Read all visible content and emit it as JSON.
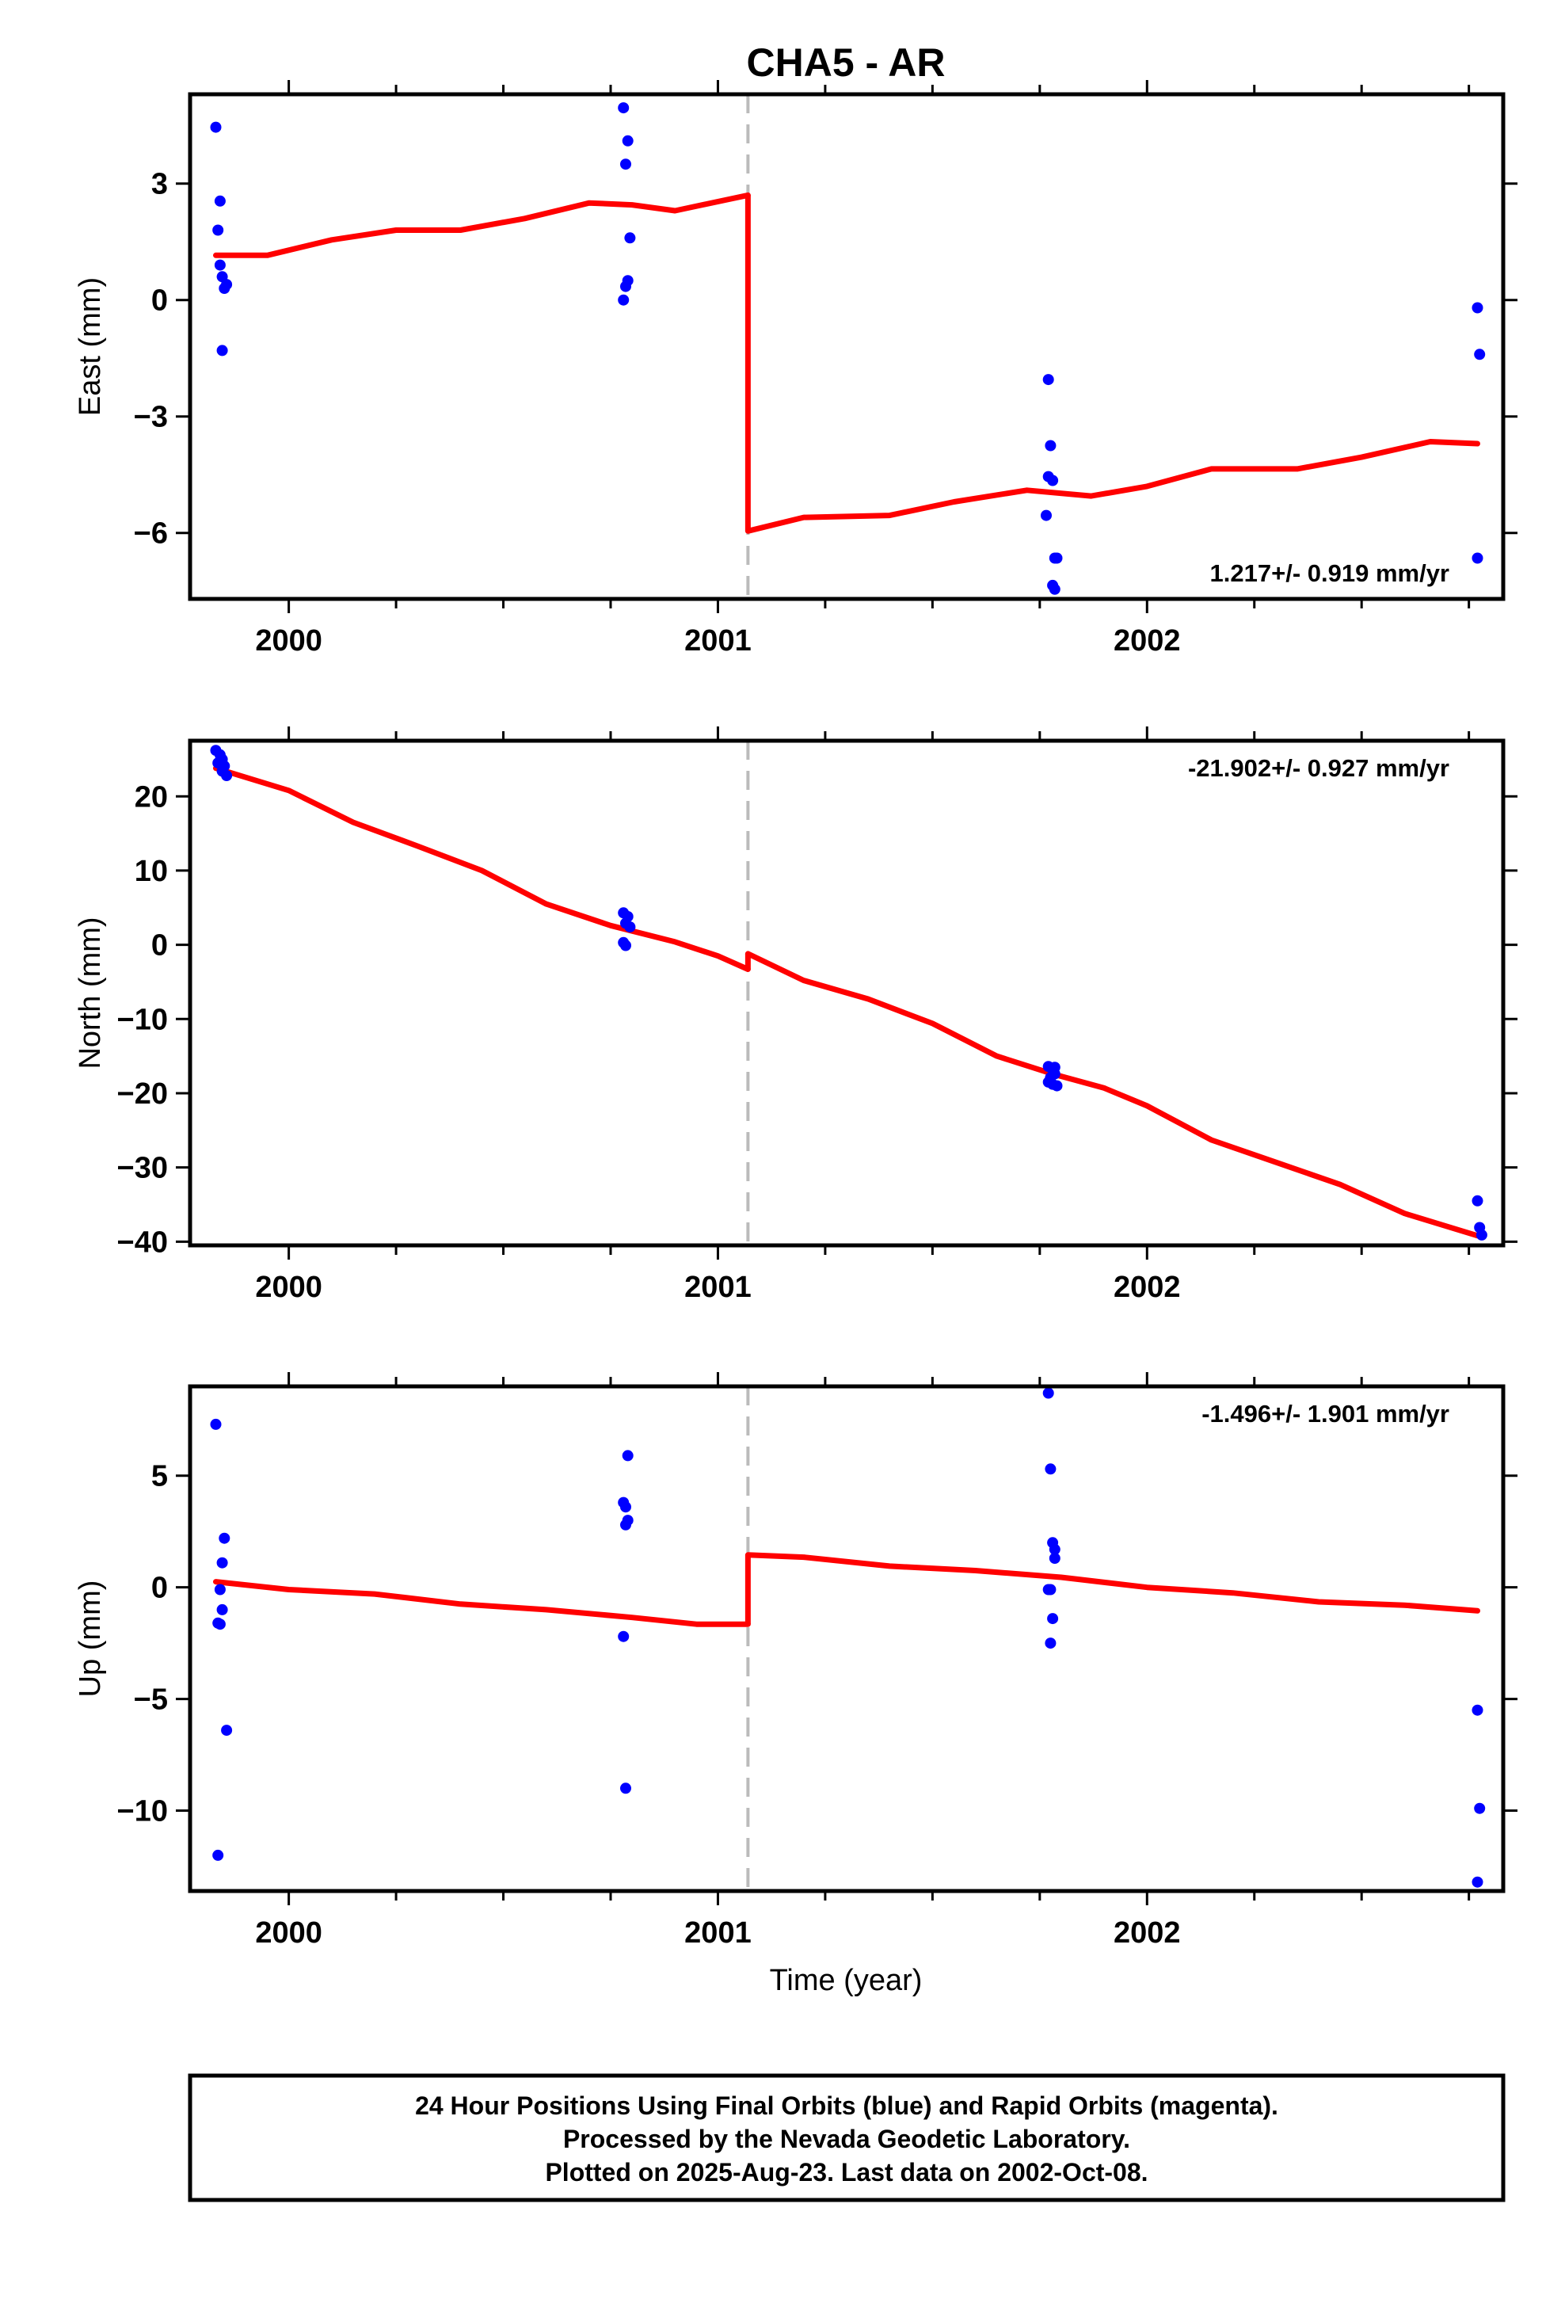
{
  "title": "CHA5 - AR",
  "xlabel": "Time (year)",
  "footer": [
    "24 Hour Positions Using Final Orbits (blue) and Rapid Orbits (magenta).",
    "Processed by the Nevada Geodetic Laboratory.",
    "Plotted on 2025-Aug-23. Last data on 2002-Oct-08."
  ],
  "colors": {
    "points": "#0000ff",
    "model": "#ff0000",
    "offset_line": "#bbbbbb",
    "frame": "#000000"
  },
  "chart_data": [
    {
      "type": "scatter",
      "ylabel": "East (mm)",
      "rate_label": "1.217+/- 0.919 mm/yr",
      "rate_position": "bottom-right",
      "xlim": [
        1999.77,
        2002.83
      ],
      "ylim": [
        -7.7,
        5.3
      ],
      "xticks": [
        2000,
        2001,
        2002
      ],
      "yticks": [
        -6,
        -3,
        0,
        3
      ],
      "offset_epoch": 2001.07,
      "points": [
        [
          1999.83,
          4.45
        ],
        [
          1999.84,
          2.55
        ],
        [
          1999.835,
          1.8
        ],
        [
          1999.84,
          0.9
        ],
        [
          1999.845,
          0.6
        ],
        [
          1999.85,
          0.3
        ],
        [
          1999.855,
          0.4
        ],
        [
          1999.845,
          -1.3
        ],
        [
          2000.78,
          4.95
        ],
        [
          2000.79,
          4.1
        ],
        [
          2000.785,
          3.5
        ],
        [
          2000.795,
          1.6
        ],
        [
          2000.79,
          0.5
        ],
        [
          2000.785,
          0.35
        ],
        [
          2000.78,
          0.0
        ],
        [
          2001.77,
          -2.05
        ],
        [
          2001.775,
          -3.75
        ],
        [
          2001.77,
          -4.55
        ],
        [
          2001.78,
          -4.65
        ],
        [
          2001.765,
          -5.55
        ],
        [
          2001.785,
          -6.65
        ],
        [
          2001.79,
          -6.65
        ],
        [
          2001.78,
          -7.35
        ],
        [
          2001.785,
          -7.45
        ],
        [
          2002.77,
          -0.2
        ],
        [
          2002.775,
          -1.4
        ],
        [
          2002.77,
          -6.65
        ]
      ],
      "model": [
        [
          [
            1999.83,
            1.15
          ],
          [
            1999.95,
            1.15
          ],
          [
            2000.1,
            1.55
          ],
          [
            2000.25,
            1.8
          ],
          [
            2000.4,
            1.8
          ],
          [
            2000.55,
            2.1
          ],
          [
            2000.7,
            2.5
          ],
          [
            2000.8,
            2.45
          ],
          [
            2000.9,
            2.3
          ],
          [
            2001.07,
            2.7
          ]
        ],
        [
          [
            2001.07,
            -5.95
          ],
          [
            2001.2,
            -5.6
          ],
          [
            2001.4,
            -5.55
          ],
          [
            2001.55,
            -5.2
          ],
          [
            2001.72,
            -4.9
          ],
          [
            2001.87,
            -5.05
          ],
          [
            2002.0,
            -4.8
          ],
          [
            2002.15,
            -4.35
          ],
          [
            2002.35,
            -4.35
          ],
          [
            2002.5,
            -4.05
          ],
          [
            2002.66,
            -3.65
          ],
          [
            2002.77,
            -3.7
          ]
        ]
      ]
    },
    {
      "type": "scatter",
      "ylabel": "North (mm)",
      "rate_label": "-21.902+/- 0.927 mm/yr",
      "rate_position": "top-right",
      "xlim": [
        1999.77,
        2002.83
      ],
      "ylim": [
        -40.5,
        27.5
      ],
      "xticks": [
        2000,
        2001,
        2002
      ],
      "yticks": [
        -40,
        -30,
        -20,
        -10,
        0,
        10,
        20
      ],
      "offset_epoch": 2001.07,
      "points": [
        [
          1999.83,
          26.2
        ],
        [
          1999.84,
          25.6
        ],
        [
          1999.845,
          25.0
        ],
        [
          1999.835,
          24.5
        ],
        [
          1999.85,
          24.1
        ],
        [
          1999.845,
          23.4
        ],
        [
          1999.855,
          22.8
        ],
        [
          1999.84,
          24.8
        ],
        [
          2000.78,
          4.3
        ],
        [
          2000.79,
          3.8
        ],
        [
          2000.785,
          2.9
        ],
        [
          2000.795,
          2.4
        ],
        [
          2000.78,
          0.3
        ],
        [
          2000.785,
          -0.1
        ],
        [
          2001.77,
          -16.4
        ],
        [
          2001.78,
          -16.8
        ],
        [
          2001.785,
          -17.4
        ],
        [
          2001.775,
          -17.9
        ],
        [
          2001.77,
          -18.5
        ],
        [
          2001.78,
          -18.8
        ],
        [
          2001.79,
          -19.0
        ],
        [
          2001.785,
          -16.5
        ],
        [
          2002.77,
          -34.5
        ],
        [
          2002.775,
          -38.1
        ],
        [
          2002.78,
          -39.1
        ]
      ],
      "model": [
        [
          [
            1999.83,
            23.8
          ],
          [
            2000.0,
            20.8
          ],
          [
            2000.15,
            16.5
          ],
          [
            2000.3,
            13.3
          ],
          [
            2000.45,
            10.0
          ],
          [
            2000.6,
            5.5
          ],
          [
            2000.75,
            2.6
          ],
          [
            2000.9,
            0.4
          ],
          [
            2001.0,
            -1.5
          ],
          [
            2001.07,
            -3.3
          ]
        ],
        [
          [
            2001.07,
            -1.2
          ],
          [
            2001.2,
            -4.8
          ],
          [
            2001.35,
            -7.3
          ],
          [
            2001.5,
            -10.6
          ],
          [
            2001.65,
            -15.0
          ],
          [
            2001.78,
            -17.4
          ],
          [
            2001.9,
            -19.3
          ],
          [
            2002.0,
            -21.7
          ],
          [
            2002.15,
            -26.3
          ],
          [
            2002.3,
            -29.3
          ],
          [
            2002.45,
            -32.3
          ],
          [
            2002.6,
            -36.2
          ],
          [
            2002.77,
            -39.2
          ]
        ]
      ]
    },
    {
      "type": "scatter",
      "ylabel": "Up (mm)",
      "rate_label": "-1.496+/- 1.901 mm/yr",
      "rate_position": "top-right",
      "xlim": [
        1999.77,
        2002.83
      ],
      "ylim": [
        -13.6,
        9.0
      ],
      "xticks": [
        2000,
        2001,
        2002
      ],
      "yticks": [
        -10,
        -5,
        0,
        5
      ],
      "offset_epoch": 2001.07,
      "points": [
        [
          1999.83,
          7.3
        ],
        [
          1999.85,
          2.2
        ],
        [
          1999.845,
          1.1
        ],
        [
          1999.84,
          -0.1
        ],
        [
          1999.845,
          -1.0
        ],
        [
          1999.835,
          -1.6
        ],
        [
          1999.84,
          -1.65
        ],
        [
          1999.855,
          -6.4
        ],
        [
          1999.835,
          -12.0
        ],
        [
          2000.79,
          5.9
        ],
        [
          2000.78,
          3.8
        ],
        [
          2000.785,
          3.6
        ],
        [
          2000.79,
          3.0
        ],
        [
          2000.785,
          2.8
        ],
        [
          2000.78,
          -2.2
        ],
        [
          2000.785,
          -9.0
        ],
        [
          2001.77,
          8.7
        ],
        [
          2001.775,
          5.3
        ],
        [
          2001.78,
          2.0
        ],
        [
          2001.785,
          1.7
        ],
        [
          2001.785,
          1.3
        ],
        [
          2001.77,
          -0.1
        ],
        [
          2001.775,
          -0.1
        ],
        [
          2001.78,
          -1.4
        ],
        [
          2001.775,
          -2.5
        ],
        [
          2002.77,
          -5.5
        ],
        [
          2002.775,
          -9.9
        ],
        [
          2002.77,
          -13.2
        ]
      ],
      "model": [
        [
          [
            1999.83,
            0.25
          ],
          [
            2000.0,
            -0.1
          ],
          [
            2000.2,
            -0.3
          ],
          [
            2000.4,
            -0.75
          ],
          [
            2000.6,
            -1.0
          ],
          [
            2000.8,
            -1.35
          ],
          [
            2000.95,
            -1.65
          ],
          [
            2001.07,
            -1.65
          ]
        ],
        [
          [
            2001.07,
            1.45
          ],
          [
            2001.2,
            1.35
          ],
          [
            2001.4,
            0.95
          ],
          [
            2001.6,
            0.75
          ],
          [
            2001.8,
            0.45
          ],
          [
            2002.0,
            0.0
          ],
          [
            2002.2,
            -0.25
          ],
          [
            2002.4,
            -0.65
          ],
          [
            2002.6,
            -0.8
          ],
          [
            2002.77,
            -1.05
          ]
        ]
      ]
    }
  ]
}
